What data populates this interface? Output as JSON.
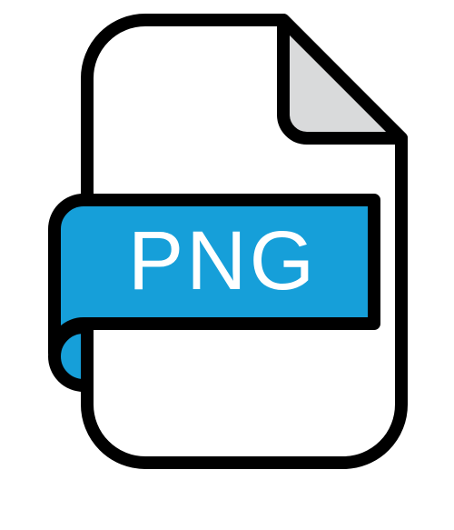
{
  "icon": {
    "name": "png-file-icon",
    "label": "PNG",
    "colors": {
      "outline": "#000000",
      "page": "#ffffff",
      "fold": "#d9dadb",
      "banner": "#169fd9",
      "label": "#ffffff"
    }
  }
}
